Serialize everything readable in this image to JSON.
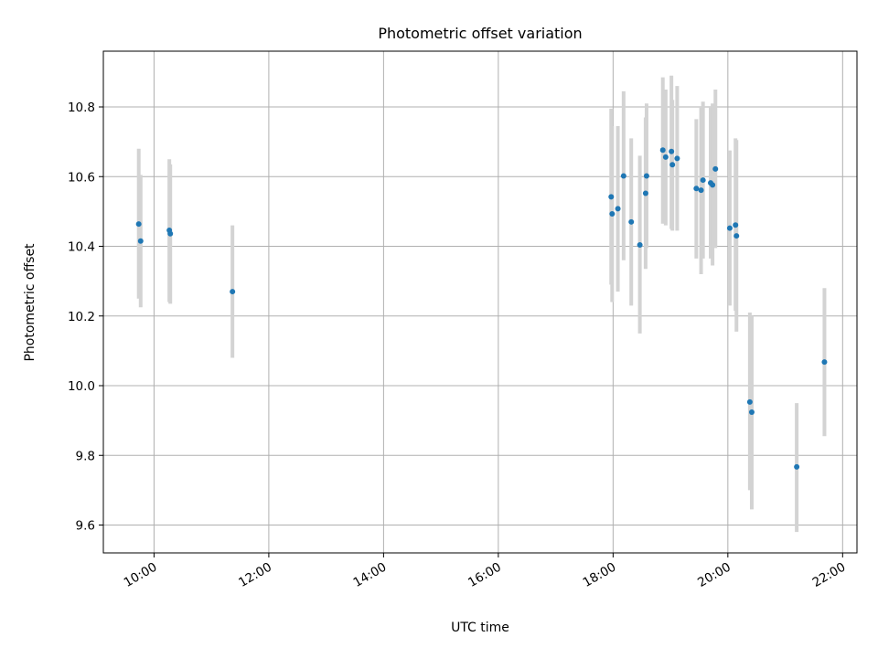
{
  "chart_data": {
    "type": "scatter",
    "title": "Photometric offset variation",
    "xlabel": "UTC time",
    "ylabel": "Photometric offset",
    "x_axis": {
      "type": "time",
      "range": [
        "09:07",
        "22:15"
      ],
      "ticks": [
        "10:00",
        "12:00",
        "14:00",
        "16:00",
        "18:00",
        "20:00",
        "22:00"
      ]
    },
    "y_axis": {
      "range": [
        9.52,
        10.96
      ],
      "ticks": [
        9.6,
        9.8,
        10.0,
        10.2,
        10.4,
        10.6,
        10.8
      ],
      "tick_labels": [
        "9.6",
        "9.8",
        "10.0",
        "10.2",
        "10.4",
        "10.6",
        "10.8"
      ]
    },
    "grid": true,
    "colors": {
      "points": "#1f77b4",
      "error_bars": "#d3d3d3",
      "grid": "#b0b0b0"
    },
    "points": [
      {
        "time": "09:44",
        "y": 10.464,
        "y_low": 10.25,
        "y_high": 10.68
      },
      {
        "time": "09:46",
        "y": 10.415,
        "y_low": 10.225,
        "y_high": 10.605
      },
      {
        "time": "10:16",
        "y": 10.446,
        "y_low": 10.24,
        "y_high": 10.65
      },
      {
        "time": "10:17",
        "y": 10.436,
        "y_low": 10.235,
        "y_high": 10.635
      },
      {
        "time": "11:22",
        "y": 10.27,
        "y_low": 10.08,
        "y_high": 10.46
      },
      {
        "time": "17:58",
        "y": 10.542,
        "y_low": 10.29,
        "y_high": 10.795
      },
      {
        "time": "17:59",
        "y": 10.493,
        "y_low": 10.24,
        "y_high": 10.745
      },
      {
        "time": "18:05",
        "y": 10.508,
        "y_low": 10.27,
        "y_high": 10.745
      },
      {
        "time": "18:11",
        "y": 10.602,
        "y_low": 10.36,
        "y_high": 10.845
      },
      {
        "time": "18:19",
        "y": 10.47,
        "y_low": 10.23,
        "y_high": 10.71
      },
      {
        "time": "18:28",
        "y": 10.404,
        "y_low": 10.15,
        "y_high": 10.66
      },
      {
        "time": "18:34",
        "y": 10.552,
        "y_low": 10.335,
        "y_high": 10.77
      },
      {
        "time": "18:35",
        "y": 10.602,
        "y_low": 10.395,
        "y_high": 10.81
      },
      {
        "time": "18:52",
        "y": 10.676,
        "y_low": 10.465,
        "y_high": 10.885
      },
      {
        "time": "18:55",
        "y": 10.656,
        "y_low": 10.46,
        "y_high": 10.85
      },
      {
        "time": "19:01",
        "y": 10.672,
        "y_low": 10.45,
        "y_high": 10.89
      },
      {
        "time": "19:02",
        "y": 10.634,
        "y_low": 10.445,
        "y_high": 10.82
      },
      {
        "time": "19:07",
        "y": 10.652,
        "y_low": 10.445,
        "y_high": 10.86
      },
      {
        "time": "19:27",
        "y": 10.566,
        "y_low": 10.365,
        "y_high": 10.765
      },
      {
        "time": "19:32",
        "y": 10.561,
        "y_low": 10.32,
        "y_high": 10.8
      },
      {
        "time": "19:34",
        "y": 10.59,
        "y_low": 10.365,
        "y_high": 10.815
      },
      {
        "time": "19:42",
        "y": 10.582,
        "y_low": 10.365,
        "y_high": 10.8
      },
      {
        "time": "19:44",
        "y": 10.576,
        "y_low": 10.345,
        "y_high": 10.81
      },
      {
        "time": "19:47",
        "y": 10.622,
        "y_low": 10.395,
        "y_high": 10.85
      },
      {
        "time": "20:02",
        "y": 10.452,
        "y_low": 10.23,
        "y_high": 10.675
      },
      {
        "time": "20:08",
        "y": 10.461,
        "y_low": 10.215,
        "y_high": 10.71
      },
      {
        "time": "20:09",
        "y": 10.43,
        "y_low": 10.155,
        "y_high": 10.705
      },
      {
        "time": "20:23",
        "y": 9.953,
        "y_low": 9.7,
        "y_high": 10.21
      },
      {
        "time": "20:25",
        "y": 9.924,
        "y_low": 9.645,
        "y_high": 10.2
      },
      {
        "time": "21:12",
        "y": 9.767,
        "y_low": 9.58,
        "y_high": 9.95
      },
      {
        "time": "21:41",
        "y": 10.068,
        "y_low": 9.855,
        "y_high": 10.28
      }
    ]
  }
}
